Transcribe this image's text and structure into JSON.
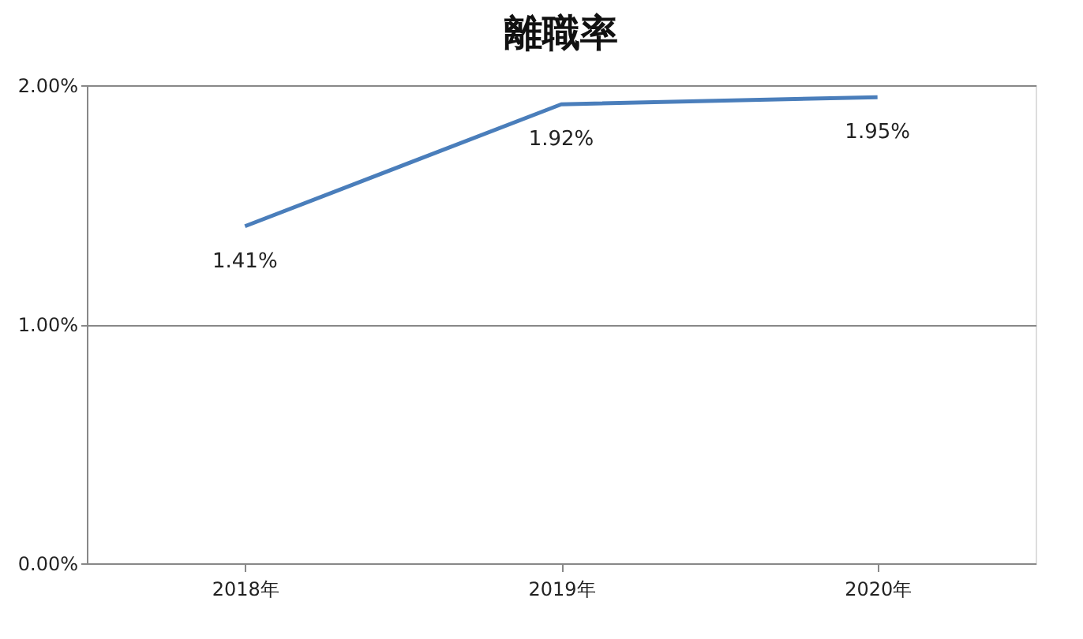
{
  "chart_data": {
    "type": "line",
    "title": "離職率",
    "categories": [
      "2018年",
      "2019年",
      "2020年"
    ],
    "series": [
      {
        "color": "#4a7ebb",
        "values": [
          1.41,
          1.92,
          1.95
        ],
        "value_labels": [
          "1.41%",
          "1.92%",
          "1.95%"
        ]
      }
    ],
    "ylim": [
      0,
      2
    ],
    "yticks": [
      {
        "value": 0,
        "label": "0.00%"
      },
      {
        "value": 1,
        "label": "1.00%"
      },
      {
        "value": 2,
        "label": "2.00%"
      }
    ],
    "grid": "y",
    "marker": "none",
    "line_style": "solid"
  }
}
